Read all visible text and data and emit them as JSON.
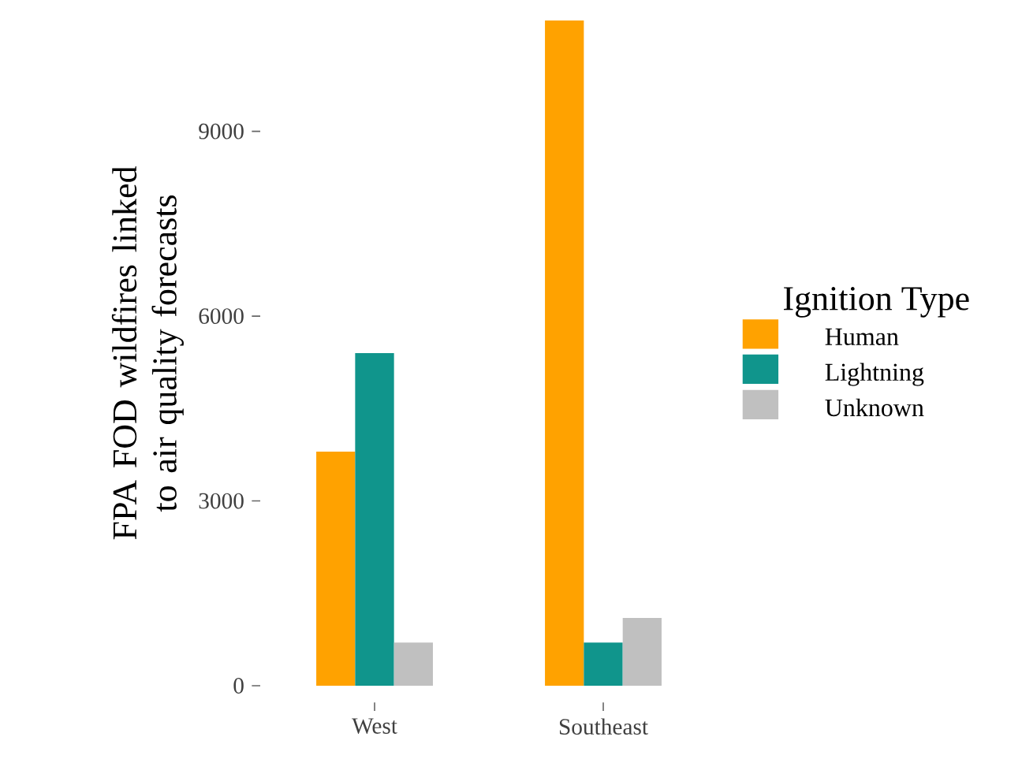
{
  "chart_data": {
    "type": "bar",
    "ylabel": "FPA FOD wildfires linked to air quality forecasts",
    "legend_title": "Ignition Type",
    "categories": [
      "West",
      "Southeast"
    ],
    "series": [
      {
        "name": "Human",
        "color": "#ffa200",
        "values": [
          3800,
          10800
        ]
      },
      {
        "name": "Lightning",
        "color": "#10958c",
        "values": [
          5400,
          700
        ]
      },
      {
        "name": "Unknown",
        "color": "#c0c0c0",
        "values": [
          700,
          1100
        ]
      }
    ],
    "ylim": [
      0,
      10800
    ],
    "yticks": [
      0,
      3000,
      6000,
      9000
    ],
    "grid": false,
    "legend": "right"
  }
}
